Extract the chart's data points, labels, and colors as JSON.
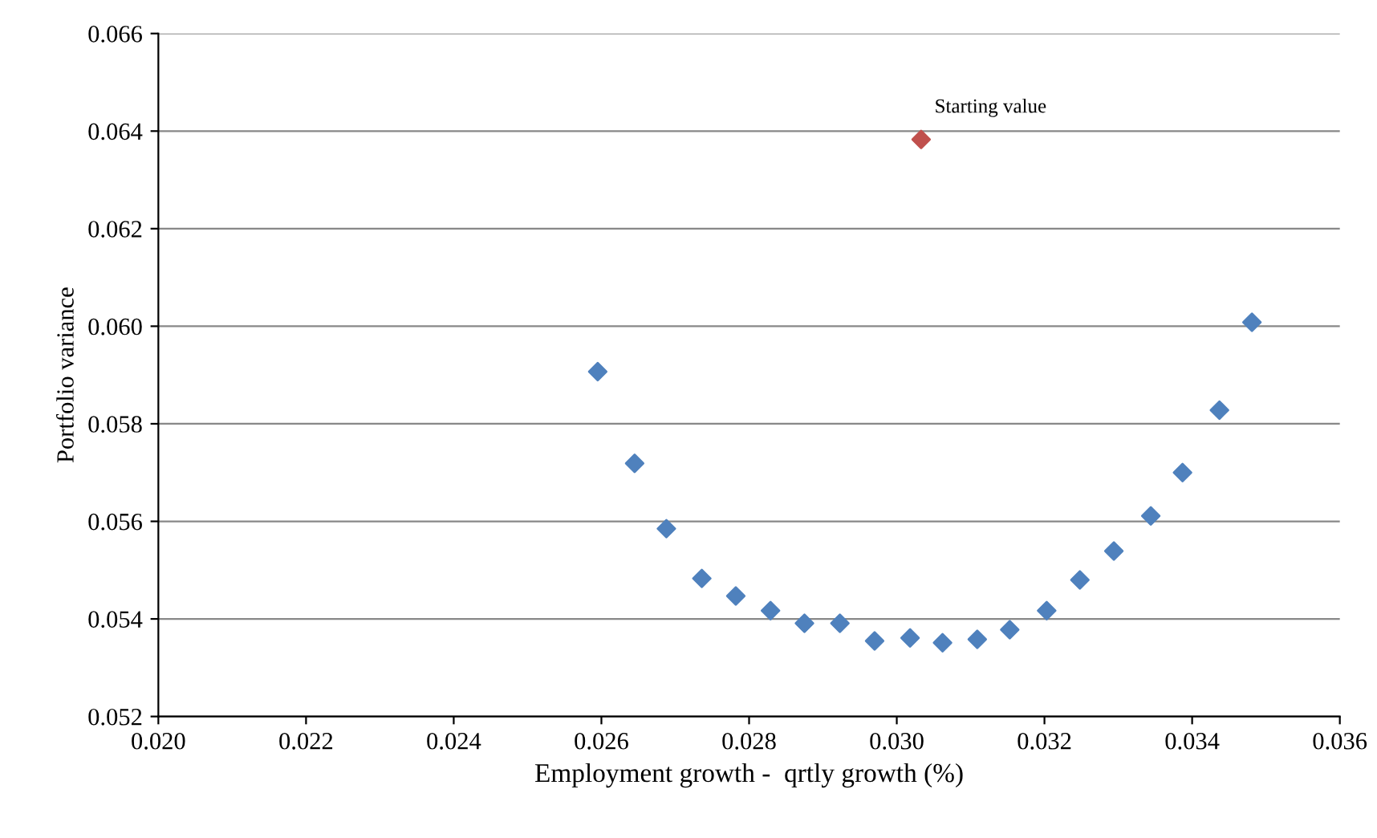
{
  "chart_data": {
    "type": "scatter",
    "xlabel": "Employment growth -  qrtly growth (%)",
    "ylabel": "Portfolio variance",
    "marker": "diamond",
    "grid": "y",
    "legend": false,
    "series": [
      {
        "color": "#4f81bd",
        "x": [
          0.02595,
          0.02645,
          0.02688,
          0.02736,
          0.02782,
          0.02829,
          0.02875,
          0.02923,
          0.0297,
          0.03018,
          0.03062,
          0.03109,
          0.03153,
          0.03203,
          0.03248,
          0.03294,
          0.03344,
          0.03387,
          0.03437,
          0.03481
        ],
        "values": [
          0.05907,
          0.05719,
          0.05585,
          0.05483,
          0.05447,
          0.05417,
          0.05391,
          0.05391,
          0.05355,
          0.05361,
          0.05351,
          0.05358,
          0.05378,
          0.05417,
          0.0548,
          0.05539,
          0.05611,
          0.057,
          0.05828,
          0.06008
        ]
      },
      {
        "color": "#c0504d",
        "x": [
          0.03033
        ],
        "values": [
          0.06383
        ]
      }
    ],
    "annotations": [
      {
        "text": "Starting value",
        "x": 0.03033,
        "y": 0.06383
      }
    ],
    "xlim": [
      0.02,
      0.036
    ],
    "xticks": [
      {
        "value": 0.02,
        "label": "0.020"
      },
      {
        "value": 0.022,
        "label": "0.022"
      },
      {
        "value": 0.024,
        "label": "0.024"
      },
      {
        "value": 0.026,
        "label": "0.026"
      },
      {
        "value": 0.028,
        "label": "0.028"
      },
      {
        "value": 0.03,
        "label": "0.030"
      },
      {
        "value": 0.032,
        "label": "0.032"
      },
      {
        "value": 0.034,
        "label": "0.034"
      },
      {
        "value": 0.036,
        "label": "0.036"
      }
    ],
    "ylim": [
      0.052,
      0.066
    ],
    "yticks": [
      {
        "value": 0.052,
        "label": "0.052"
      },
      {
        "value": 0.054,
        "label": "0.054"
      },
      {
        "value": 0.056,
        "label": "0.056"
      },
      {
        "value": 0.058,
        "label": "0.058"
      },
      {
        "value": 0.06,
        "label": "0.060"
      },
      {
        "value": 0.062,
        "label": "0.062"
      },
      {
        "value": 0.064,
        "label": "0.064"
      },
      {
        "value": 0.066,
        "label": "0.066"
      }
    ]
  }
}
